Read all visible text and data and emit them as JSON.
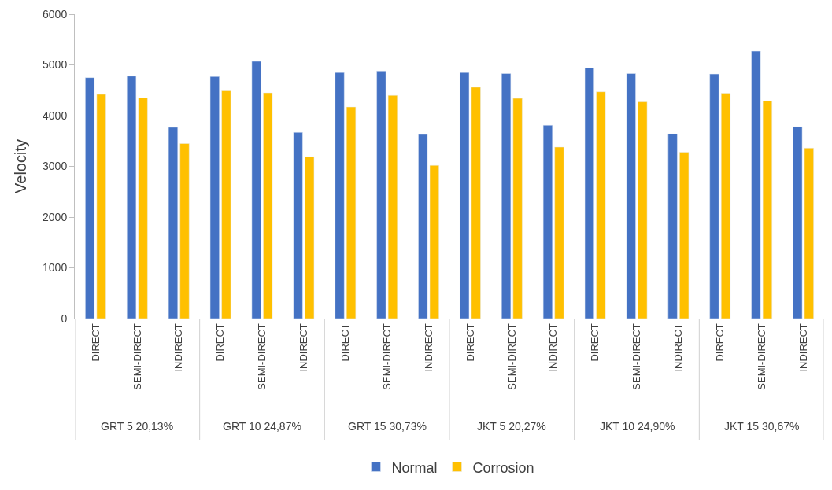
{
  "chart_data": {
    "type": "bar",
    "ylabel": "Velocity",
    "categories": [
      "DIRECT",
      "SEMI-DIRECT",
      "INDIRECT",
      "DIRECT",
      "SEMI-DIRECT",
      "INDIRECT",
      "DIRECT",
      "SEMI-DIRECT",
      "INDIRECT",
      "DIRECT",
      "SEMI-DIRECT",
      "INDIRECT",
      "DIRECT",
      "SEMI-DIRECT",
      "INDIRECT",
      "DIRECT",
      "SEMI-DIRECT",
      "INDIRECT"
    ],
    "series": [
      {
        "name": "Normal",
        "color": "#4472c4",
        "values": [
          4750,
          4780,
          3770,
          4770,
          5070,
          3670,
          4850,
          4880,
          3630,
          4850,
          4830,
          3810,
          4940,
          4830,
          3640,
          4820,
          5270,
          3780
        ]
      },
      {
        "name": "Corrosion",
        "color": "#ffc000",
        "values": [
          4420,
          4350,
          3450,
          4490,
          4450,
          3190,
          4170,
          4400,
          3020,
          4560,
          4340,
          3380,
          4470,
          4270,
          3280,
          4440,
          4290,
          3360
        ]
      }
    ],
    "annotations": [
      "GRT 5 20,13%",
      "GRT 10 24,87%",
      "GRT 15 30,73%",
      "JKT 5 20,27%",
      "JKT 10 24,90%",
      "JKT 15 30,67%"
    ],
    "ylim": [
      0,
      6000
    ],
    "yticks": [
      0,
      1000,
      2000,
      3000,
      4000,
      5000,
      6000
    ],
    "grid": false,
    "legend": "bottom"
  }
}
